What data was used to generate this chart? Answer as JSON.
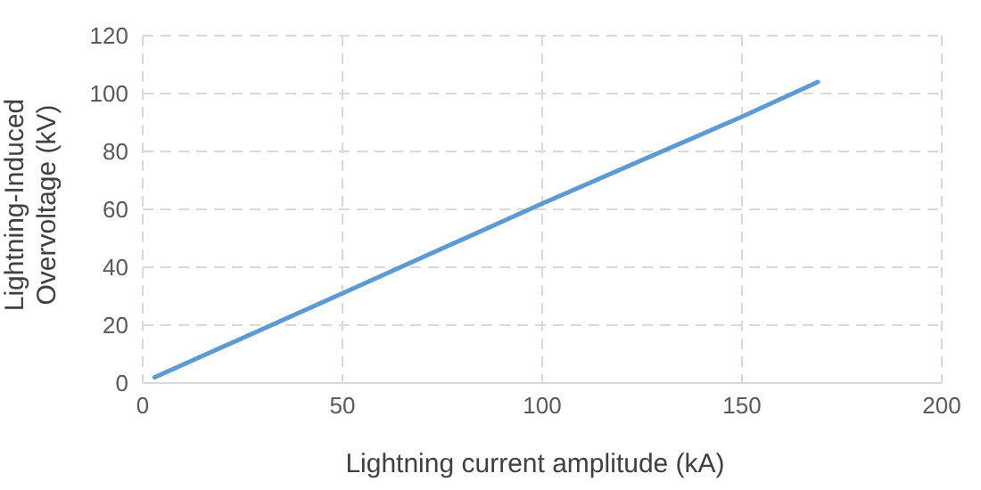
{
  "chart_data": {
    "type": "line",
    "xlabel": "Lightning current amplitude (kA)",
    "ylabel": "Lightning-Induced Overvoltage (kV)",
    "x": [
      3,
      50,
      100,
      150,
      169
    ],
    "series": [
      {
        "color": "#5b9bd5",
        "values": [
          2,
          31,
          62,
          92,
          104
        ]
      }
    ],
    "xlim": [
      0,
      200
    ],
    "xticks": [
      0,
      50,
      100,
      150,
      200
    ],
    "ylim": [
      0,
      120
    ],
    "yticks": [
      0,
      20,
      40,
      60,
      80,
      100,
      120
    ],
    "grid": true,
    "marker": "none",
    "line_style": "solid"
  }
}
